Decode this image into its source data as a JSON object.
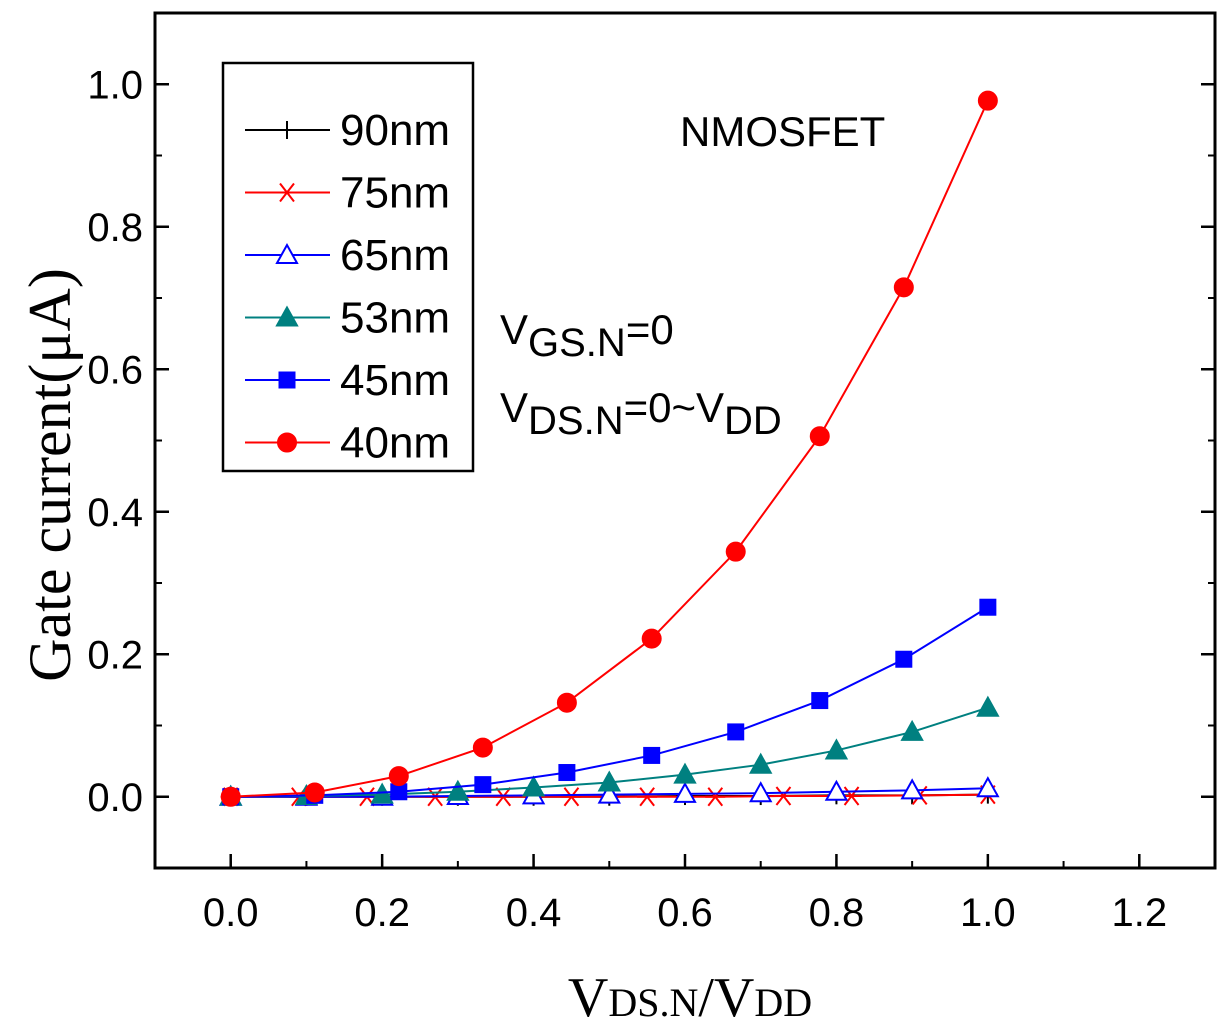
{
  "chart_data": {
    "type": "line",
    "xlabel": {
      "main": "V",
      "sub1": "DS.N",
      "slash": "/V",
      "sub2": "DD"
    },
    "ylabel": "Gate current(μA)",
    "xlim": [
      -0.1,
      1.3
    ],
    "ylim": [
      -0.1,
      1.1
    ],
    "xticks": [
      "0.0",
      "0.2",
      "0.4",
      "0.6",
      "0.8",
      "1.0",
      "1.2"
    ],
    "yticks": [
      "0.0",
      "0.2",
      "0.4",
      "0.6",
      "0.8",
      "1.0"
    ],
    "annotations": {
      "device": "NMOSFET",
      "vgs": {
        "main": "V",
        "sub": "GS.N",
        "rest": "=0"
      },
      "vds": {
        "main": "V",
        "sub": "DS.N",
        "rest": "=0~V",
        "sub2": "DD"
      }
    },
    "series": [
      {
        "name": "90nm",
        "color": "#000000",
        "marker": "plus",
        "x": [
          0,
          0.1,
          0.2,
          0.3,
          0.4,
          0.5,
          0.6,
          0.7,
          0.8,
          0.9,
          1.0
        ],
        "y": [
          0,
          0,
          0,
          0,
          0,
          0,
          0.001,
          0.001,
          0.002,
          0.002,
          0.003
        ]
      },
      {
        "name": "75nm",
        "color": "#ff0000",
        "marker": "asterisk",
        "x": [
          0,
          0.09,
          0.18,
          0.27,
          0.36,
          0.45,
          0.55,
          0.64,
          0.73,
          0.82,
          0.91,
          1.0
        ],
        "y": [
          0,
          0,
          0,
          0,
          0,
          0,
          0,
          0,
          0.001,
          0.001,
          0.002,
          0.003
        ]
      },
      {
        "name": "65nm",
        "color": "#0000ff",
        "marker": "triangle-open",
        "x": [
          0,
          0.1,
          0.2,
          0.3,
          0.4,
          0.5,
          0.6,
          0.7,
          0.8,
          0.9,
          1.0
        ],
        "y": [
          0,
          0,
          0,
          0.001,
          0.002,
          0.003,
          0.004,
          0.005,
          0.007,
          0.009,
          0.012
        ]
      },
      {
        "name": "53nm",
        "color": "#008080",
        "marker": "triangle-filled",
        "x": [
          0,
          0.1,
          0.2,
          0.3,
          0.4,
          0.5,
          0.6,
          0.7,
          0.8,
          0.9,
          1.0
        ],
        "y": [
          0,
          0.001,
          0.003,
          0.007,
          0.013,
          0.02,
          0.031,
          0.045,
          0.065,
          0.091,
          0.125
        ]
      },
      {
        "name": "45nm",
        "color": "#0000ff",
        "marker": "square-filled",
        "x": [
          0,
          0.111,
          0.222,
          0.333,
          0.444,
          0.556,
          0.667,
          0.778,
          0.889,
          1.0
        ],
        "y": [
          0,
          0.002,
          0.007,
          0.017,
          0.034,
          0.058,
          0.091,
          0.135,
          0.193,
          0.266
        ]
      },
      {
        "name": "40nm",
        "color": "#ff0000",
        "marker": "circle-filled",
        "x": [
          0,
          0.111,
          0.222,
          0.333,
          0.444,
          0.556,
          0.667,
          0.778,
          0.889,
          1.0
        ],
        "y": [
          0,
          0.006,
          0.029,
          0.069,
          0.132,
          0.222,
          0.344,
          0.506,
          0.715,
          0.977
        ]
      }
    ]
  }
}
